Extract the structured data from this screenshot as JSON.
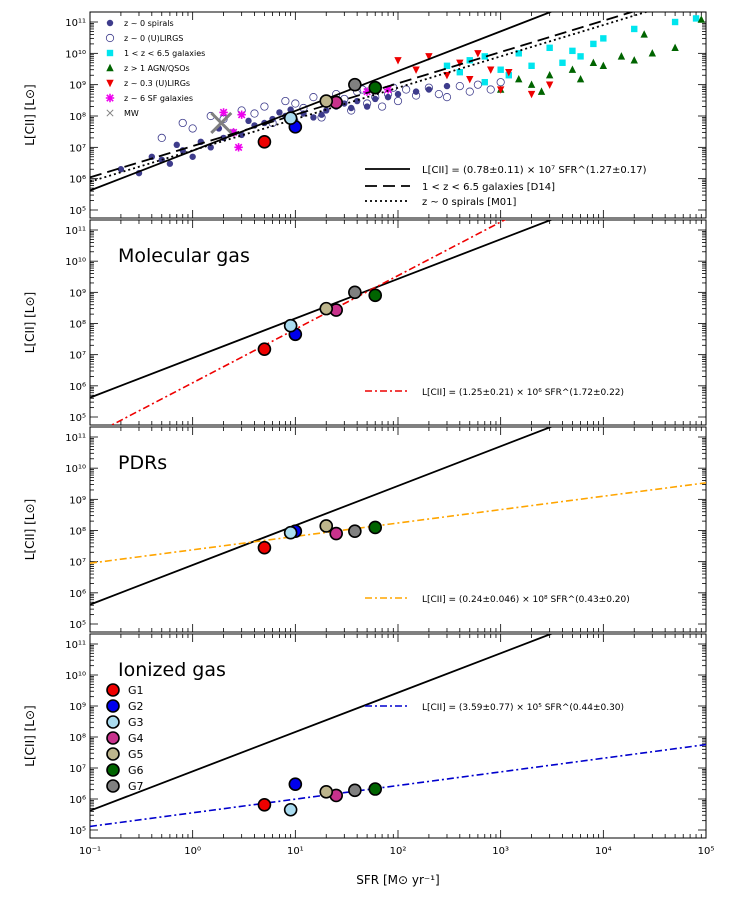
{
  "chart_data": [
    {
      "type": "scatter",
      "panel": "top",
      "xlabel": "SFR [M⊙ yr⁻¹]",
      "ylabel": "L[CII] [L⊙]",
      "xscale": "log",
      "yscale": "log",
      "xlim": [
        0.1,
        100000
      ],
      "ylim": [
        100000,
        100000000000
      ],
      "legend": [
        {
          "label": "z ~ 0 spirals",
          "marker": "filled-circle",
          "color": "#3e3c8c"
        },
        {
          "label": "z ~ 0 (U)LIRGS",
          "marker": "open-circle",
          "color": "#3e3c8c"
        },
        {
          "label": "1 < z < 6.5 galaxies",
          "marker": "square",
          "color": "#00e5ee"
        },
        {
          "label": "z > 1 AGN/QSOs",
          "marker": "triangle-up",
          "color": "#006400"
        },
        {
          "label": "z ~ 0.3 (U)LIRGs",
          "marker": "triangle-down",
          "color": "#ee0000"
        },
        {
          "label": "z ~ 6 SF galaxies",
          "marker": "star",
          "color": "#ee00ee"
        },
        {
          "label": "MW",
          "marker": "cross",
          "color": "#808080"
        }
      ],
      "lines": [
        {
          "label": "L[CII] = (0.78±0.11) × 10⁷ SFR^(1.27±0.17)",
          "style": "solid",
          "norm": 7800000,
          "slope": 1.27
        },
        {
          "label": "1 < z < 6.5 galaxies [D14]",
          "style": "dashed",
          "norm": 11000000,
          "slope": 1.0
        },
        {
          "label": "z ~ 0 spirals [M01]",
          "style": "dotted",
          "norm": 8000000,
          "slope": 1.0
        }
      ],
      "series": [
        {
          "name": "z ~ 0 spirals",
          "points": [
            [
              0.2,
              2000000
            ],
            [
              0.3,
              1500000
            ],
            [
              0.5,
              4000000
            ],
            [
              0.6,
              3000000
            ],
            [
              0.8,
              8000000
            ],
            [
              1,
              5000000
            ],
            [
              1.2,
              15000000
            ],
            [
              1.5,
              10000000
            ],
            [
              2,
              20000000
            ],
            [
              2.5,
              30000000
            ],
            [
              3,
              25000000
            ],
            [
              4,
              50000000
            ],
            [
              5,
              60000000
            ],
            [
              6,
              80000000
            ],
            [
              8,
              100000000
            ],
            [
              10,
              70000000
            ],
            [
              12,
              120000000
            ],
            [
              15,
              90000000
            ],
            [
              20,
              150000000
            ],
            [
              25,
              200000000
            ],
            [
              30,
              250000000
            ],
            [
              40,
              300000000
            ],
            [
              50,
              200000000
            ],
            [
              0.4,
              5000000
            ],
            [
              0.7,
              12000000
            ],
            [
              1.8,
              40000000
            ],
            [
              3.5,
              70000000
            ],
            [
              7,
              130000000
            ],
            [
              9,
              160000000
            ],
            [
              18,
              110000000
            ],
            [
              35,
              180000000
            ],
            [
              60,
              350000000
            ],
            [
              80,
              400000000
            ],
            [
              100,
              500000000
            ],
            [
              150,
              600000000
            ],
            [
              200,
              700000000
            ],
            [
              300,
              900000000
            ]
          ]
        },
        {
          "name": "z ~ 0 (U)LIRGS",
          "points": [
            [
              1,
              40000000
            ],
            [
              2,
              80000000
            ],
            [
              3,
              150000000
            ],
            [
              5,
              200000000
            ],
            [
              8,
              300000000
            ],
            [
              10,
              250000000
            ],
            [
              12,
              180000000
            ],
            [
              15,
              400000000
            ],
            [
              20,
              300000000
            ],
            [
              25,
              500000000
            ],
            [
              30,
              350000000
            ],
            [
              40,
              600000000
            ],
            [
              50,
              250000000
            ],
            [
              60,
              400000000
            ],
            [
              80,
              500000000
            ],
            [
              100,
              300000000
            ],
            [
              120,
              700000000
            ],
            [
              150,
              450000000
            ],
            [
              200,
              800000000
            ],
            [
              250,
              500000000
            ],
            [
              300,
              400000000
            ],
            [
              400,
              900000000
            ],
            [
              500,
              600000000
            ],
            [
              0.5,
              20000000
            ],
            [
              0.8,
              60000000
            ],
            [
              1.5,
              100000000
            ],
            [
              4,
              120000000
            ],
            [
              6,
              60000000
            ],
            [
              18,
              90000000
            ],
            [
              35,
              150000000
            ],
            [
              45,
              700000000
            ],
            [
              70,
              200000000
            ],
            [
              90,
              800000000
            ],
            [
              600,
              1000000000
            ],
            [
              800,
              700000000
            ],
            [
              1000,
              1200000000
            ]
          ]
        },
        {
          "name": "1 < z < 6.5 galaxies",
          "points": [
            [
              300,
              4000000000
            ],
            [
              400,
              2500000000
            ],
            [
              500,
              6000000000
            ],
            [
              700,
              8000000000
            ],
            [
              1000,
              3000000000
            ],
            [
              1500,
              10000000000
            ],
            [
              2000,
              4000000000
            ],
            [
              3000,
              15000000000
            ],
            [
              5000,
              12000000000
            ],
            [
              8000,
              20000000000
            ],
            [
              10000,
              30000000000
            ],
            [
              20000,
              60000000000
            ],
            [
              50000,
              100000000000
            ],
            [
              80000,
              130000000000
            ],
            [
              700,
              1200000000
            ],
            [
              1200,
              2000000000
            ],
            [
              4000,
              5000000000
            ],
            [
              6000,
              8000000000
            ]
          ]
        },
        {
          "name": "z > 1 AGN/QSOs",
          "points": [
            [
              1000,
              700000000
            ],
            [
              1500,
              1500000000
            ],
            [
              2000,
              1000000000
            ],
            [
              3000,
              2000000000
            ],
            [
              5000,
              3000000000
            ],
            [
              8000,
              5000000000
            ],
            [
              10000,
              4000000000
            ],
            [
              15000,
              8000000000
            ],
            [
              20000,
              6000000000
            ],
            [
              30000,
              10000000000
            ],
            [
              50000,
              15000000000
            ],
            [
              90000,
              120000000000
            ],
            [
              2500,
              600000000
            ],
            [
              6000,
              1500000000
            ],
            [
              25000,
              40000000000
            ]
          ]
        },
        {
          "name": "z ~ 0.3 (U)LIRGs",
          "points": [
            [
              100,
              6000000000
            ],
            [
              150,
              3000000000
            ],
            [
              200,
              8000000000
            ],
            [
              300,
              2000000000
            ],
            [
              400,
              5000000000
            ],
            [
              500,
              1500000000
            ],
            [
              600,
              10000000000
            ],
            [
              800,
              3000000000
            ],
            [
              1000,
              700000000
            ],
            [
              1200,
              2500000000
            ],
            [
              2000,
              500000000
            ],
            [
              3000,
              1000000000
            ]
          ]
        },
        {
          "name": "z ~ 6 SF galaxies",
          "points": [
            [
              2,
              130000000
            ],
            [
              3,
              110000000
            ],
            [
              2.5,
              30000000
            ],
            [
              2.8,
              10000000
            ],
            [
              50,
              600000000
            ],
            [
              60,
              900000000
            ],
            [
              80,
              700000000
            ]
          ]
        },
        {
          "name": "MW",
          "points": [
            [
              1.9,
              60000000
            ]
          ]
        }
      ]
    },
    {
      "type": "scatter",
      "panel": "molecular",
      "title": "Molecular gas",
      "ylabel": "L[CII] [L⊙]",
      "xlim": [
        0.1,
        100000
      ],
      "ylim": [
        100000,
        100000000000
      ],
      "fit": {
        "label": "L[CII] = (1.25±0.21) × 10⁶ SFR^(1.72±0.22)",
        "norm": 1250000,
        "slope": 1.72,
        "color": "#ee0000"
      },
      "points": [
        {
          "name": "G1",
          "x": 5,
          "y": 15000000
        },
        {
          "name": "G2",
          "x": 10,
          "y": 45000000
        },
        {
          "name": "G3",
          "x": 9,
          "y": 85000000
        },
        {
          "name": "G4",
          "x": 25,
          "y": 270000000
        },
        {
          "name": "G5",
          "x": 20,
          "y": 300000000
        },
        {
          "name": "G6",
          "x": 60,
          "y": 800000000
        },
        {
          "name": "G7",
          "x": 38,
          "y": 1000000000
        }
      ]
    },
    {
      "type": "scatter",
      "panel": "pdr",
      "title": "PDRs",
      "ylabel": "L[CII] [L⊙]",
      "xlim": [
        0.1,
        100000
      ],
      "ylim": [
        100000,
        100000000000
      ],
      "fit": {
        "label": "L[CII] = (0.24±0.046) × 10⁸ SFR^(0.43±0.20)",
        "norm": 24000000,
        "slope": 0.43,
        "color": "#ffa500"
      },
      "points": [
        {
          "name": "G1",
          "x": 5,
          "y": 28000000
        },
        {
          "name": "G2",
          "x": 10,
          "y": 95000000
        },
        {
          "name": "G3",
          "x": 9,
          "y": 85000000
        },
        {
          "name": "G4",
          "x": 25,
          "y": 80000000
        },
        {
          "name": "G5",
          "x": 20,
          "y": 140000000
        },
        {
          "name": "G6",
          "x": 60,
          "y": 125000000
        },
        {
          "name": "G7",
          "x": 38,
          "y": 95000000
        }
      ]
    },
    {
      "type": "scatter",
      "panel": "ionized",
      "title": "Ionized gas",
      "xlabel": "SFR [M⊙ yr⁻¹]",
      "ylabel": "L[CII] [L⊙]",
      "xlim": [
        0.1,
        100000
      ],
      "ylim": [
        100000,
        100000000000
      ],
      "fit": {
        "label": "L[CII] = (3.59±0.77) × 10⁵ SFR^(0.44±0.30)",
        "norm": 359000,
        "slope": 0.44,
        "color": "#0000cd"
      },
      "points": [
        {
          "name": "G1",
          "x": 5,
          "y": 650000
        },
        {
          "name": "G2",
          "x": 10,
          "y": 3000000
        },
        {
          "name": "G3",
          "x": 9,
          "y": 450000
        },
        {
          "name": "G4",
          "x": 25,
          "y": 1300000
        },
        {
          "name": "G5",
          "x": 20,
          "y": 1700000
        },
        {
          "name": "G6",
          "x": 60,
          "y": 2100000
        },
        {
          "name": "G7",
          "x": 38,
          "y": 1900000
        }
      ]
    }
  ],
  "galaxy_colors": {
    "G1": "#ee0000",
    "G2": "#0000ee",
    "G3": "#aadcf0",
    "G4": "#c8328c",
    "G5": "#bdb58c",
    "G6": "#006400",
    "G7": "#808080"
  },
  "galaxy_legend": [
    "G1",
    "G2",
    "G3",
    "G4",
    "G5",
    "G6",
    "G7"
  ],
  "reference_line": {
    "norm": 7800000,
    "slope": 1.27
  },
  "x_ticks": [
    "10⁻¹",
    "10⁰",
    "10¹",
    "10²",
    "10³",
    "10⁴",
    "10⁵"
  ],
  "y_ticks": [
    "10⁵",
    "10⁶",
    "10⁷",
    "10⁸",
    "10⁹",
    "10¹⁰",
    "10¹¹"
  ],
  "labels": {
    "ylabel": "L[CII] [L⊙]",
    "xlabel": "SFR [M⊙ yr⁻¹]"
  }
}
